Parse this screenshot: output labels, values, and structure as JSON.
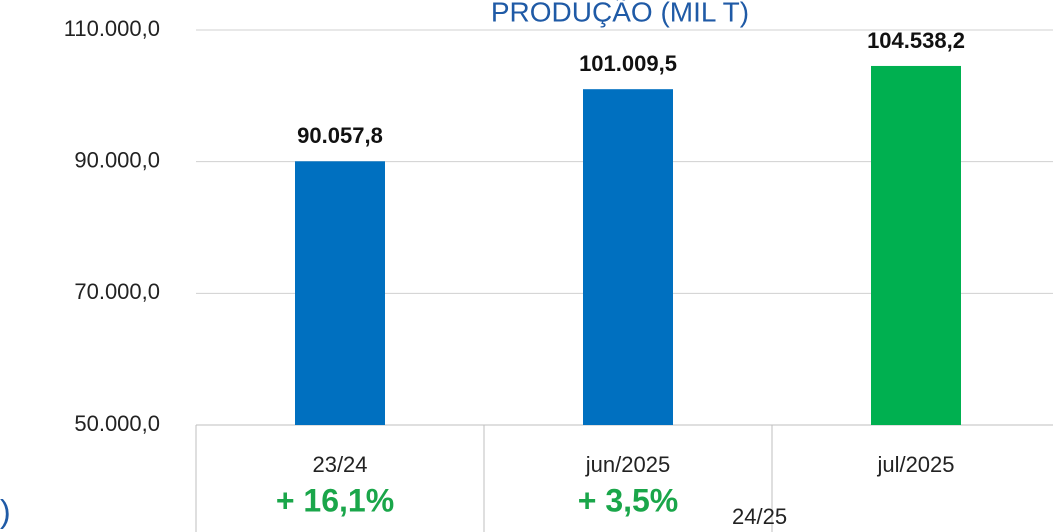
{
  "chart_data": {
    "type": "bar",
    "title": "PRODUÇÃO (MIL T)",
    "categories": [
      "23/24",
      "jun/2025",
      "jul/2025"
    ],
    "values": [
      90057.8,
      101009.5,
      104538.2
    ],
    "value_labels": [
      "90.057,8",
      "101.009,5",
      "104.538,2"
    ],
    "colors": [
      "#0070c0",
      "#0070c0",
      "#00b050"
    ],
    "ylim": [
      50000,
      110000
    ],
    "yticks": [
      {
        "value": 50000,
        "label": "50.000,0"
      },
      {
        "value": 70000,
        "label": "70.000,0"
      },
      {
        "value": 90000,
        "label": "90.000,0"
      },
      {
        "value": 110000,
        "label": "110.000,0"
      }
    ],
    "grid": true,
    "annotations": [
      "+ 16,1%",
      "+ 3,5%",
      "24/25",
      ")"
    ]
  }
}
